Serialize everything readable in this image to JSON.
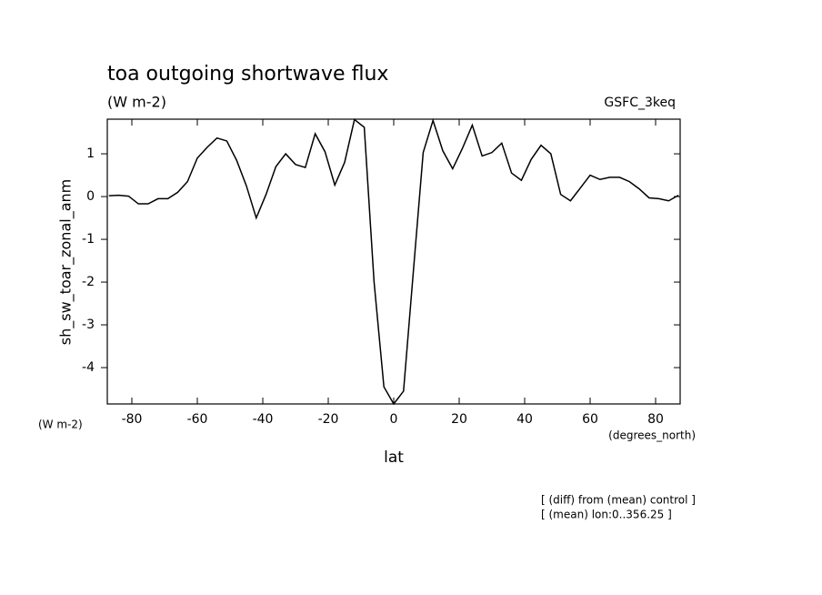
{
  "chart_data": {
    "type": "line",
    "title": "toa outgoing shortwave flux",
    "subtitle": "(W m-2)",
    "dataset_label": "GSFC_3keq",
    "y_label": "sh_sw_toar_zonal_anm",
    "y_units": "(W m-2)",
    "x_label": "lat",
    "x_units": "(degrees_north)",
    "notes": [
      "[ (diff) from (mean) control ]",
      "[ (mean) lon:0..356.25 ]"
    ],
    "x": [
      -87,
      -84,
      -81,
      -78,
      -75,
      -72,
      -69,
      -66,
      -63,
      -60,
      -57,
      -54,
      -51,
      -48,
      -45,
      -42,
      -39,
      -36,
      -33,
      -30,
      -27,
      -24,
      -21,
      -18,
      -15,
      -12,
      -9,
      -6,
      -3,
      0,
      3,
      6,
      9,
      12,
      15,
      18,
      21,
      24,
      27,
      30,
      33,
      36,
      39,
      42,
      45,
      48,
      51,
      54,
      57,
      60,
      63,
      66,
      69,
      72,
      75,
      78,
      81,
      84,
      87
    ],
    "series": [
      {
        "color": "#000000",
        "values": [
          0.02,
          0.03,
          0.01,
          -0.17,
          -0.17,
          -0.05,
          -0.05,
          0.1,
          0.35,
          0.9,
          1.15,
          1.37,
          1.3,
          0.85,
          0.25,
          -0.5,
          0.05,
          0.7,
          1.0,
          0.75,
          0.68,
          1.47,
          1.05,
          0.27,
          0.8,
          1.8,
          1.62,
          -2.0,
          -4.45,
          -4.85,
          -4.55,
          -1.75,
          1.03,
          1.78,
          1.07,
          0.65,
          1.13,
          1.67,
          0.95,
          1.03,
          1.25,
          0.55,
          0.38,
          0.87,
          1.2,
          1.0,
          0.05,
          -0.1,
          0.2,
          0.5,
          0.4,
          0.45,
          0.45,
          0.35,
          0.18,
          -0.03,
          -0.05,
          -0.1,
          0.03
        ]
      }
    ],
    "xlim": [
      -87.5,
      87.5
    ],
    "xticks": [
      -80,
      -60,
      -40,
      -20,
      0,
      20,
      40,
      60,
      80
    ],
    "ylim": [
      -4.85,
      1.81
    ],
    "yticks": [
      -4,
      -3,
      -2,
      -1,
      0,
      1
    ],
    "grid": false
  }
}
